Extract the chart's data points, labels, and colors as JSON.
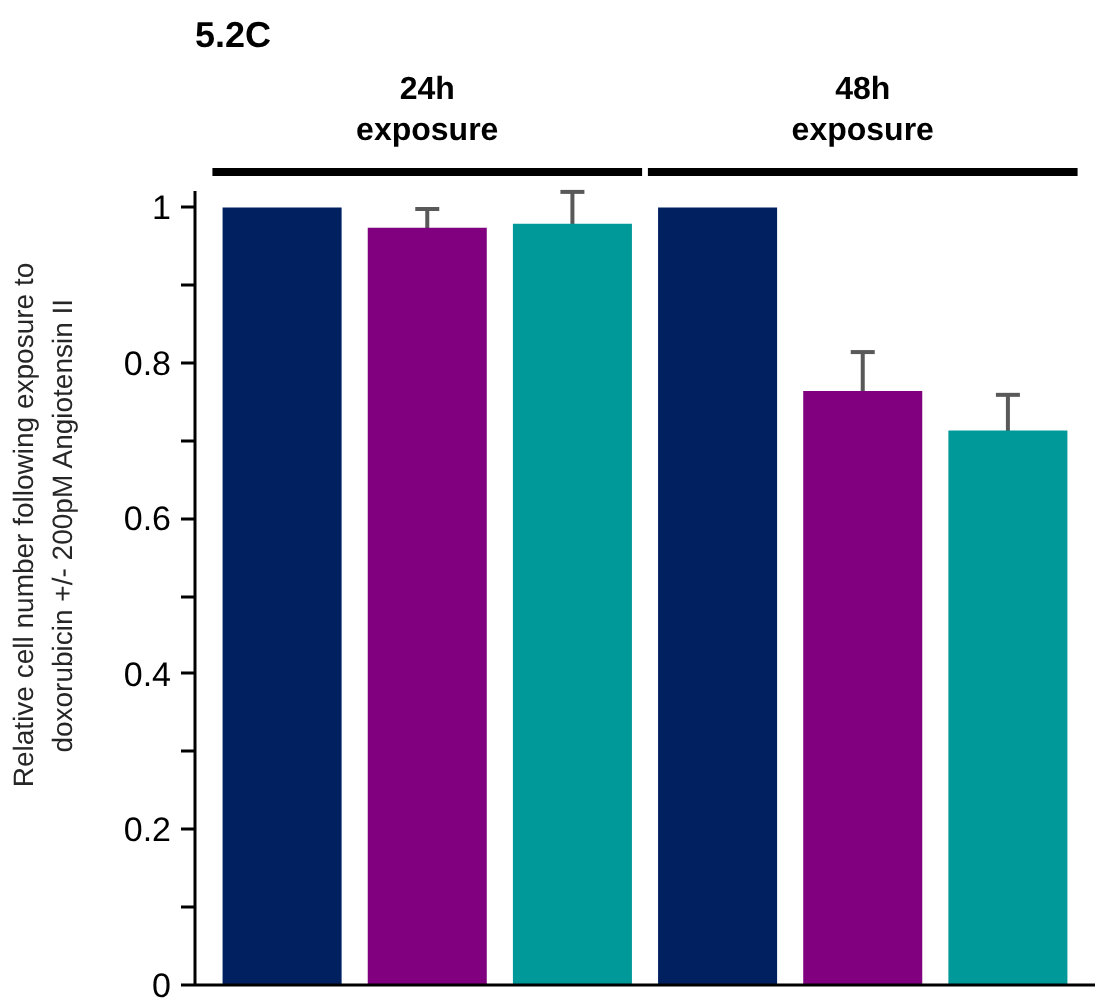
{
  "chart_data": {
    "type": "bar",
    "title": "5.2C",
    "ylabel": "Relative cell number following exposure to\ndoxorubicin +/- 200pM Angiotensin II",
    "categories": [
      null,
      null,
      null,
      null,
      null,
      null
    ],
    "values": [
      1,
      0.974,
      0.979,
      1,
      0.764,
      0.713
    ],
    "errors": [
      null,
      0.024,
      0.041,
      null,
      0.05,
      0.046
    ],
    "colors": [
      "#002060",
      "#800080",
      "#009999",
      "#002060",
      "#800080",
      "#009999"
    ],
    "ylim": [
      0,
      1.02
    ],
    "yticks": [
      0,
      {
        "value": 0.1,
        "label": null
      },
      0.2,
      {
        "value": 0.3,
        "label": null
      },
      0.4,
      {
        "value": 0.5,
        "label": null
      },
      0.6,
      {
        "value": 0.7,
        "label": null
      },
      0.8,
      {
        "value": 0.9,
        "label": null
      },
      1
    ],
    "annotations": [
      "24h\nexposure",
      "48h\nexposure"
    ],
    "grid": false
  }
}
